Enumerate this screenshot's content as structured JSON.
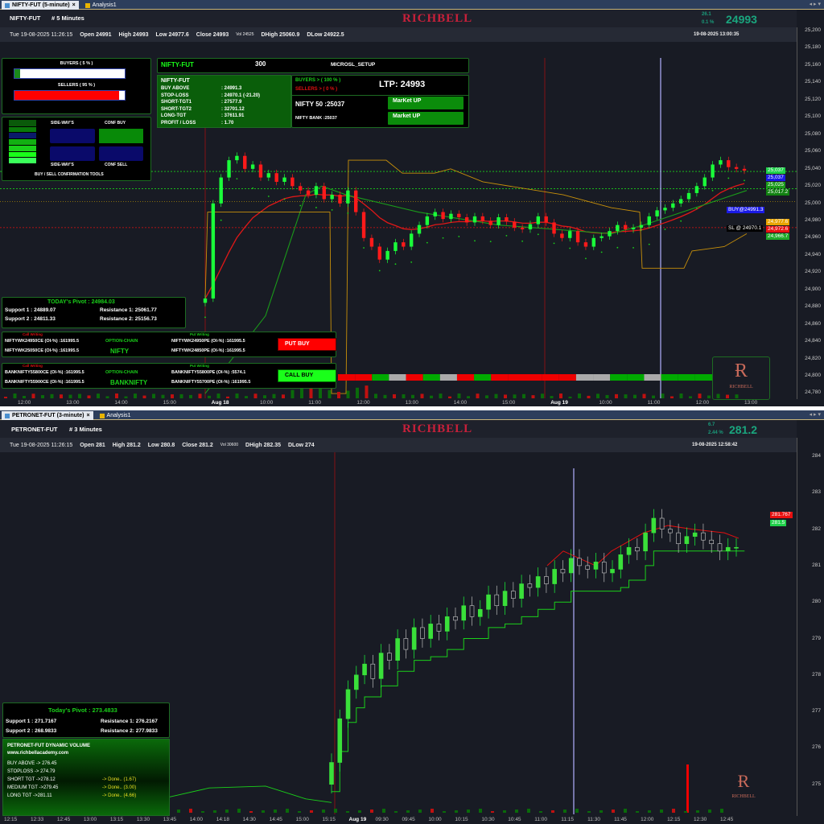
{
  "top": {
    "tabs": [
      {
        "label": "NIFTY-FUT (5-minute)"
      },
      {
        "label": "Analysis1"
      }
    ],
    "symbol": "NIFTY-FUT",
    "interval": "# 5  Minutes",
    "logo": "RICHBELL",
    "change": "26.1",
    "change_pct": "0.1 %",
    "ltp": "24993",
    "info": {
      "date": "Tue  19-08-2025 11:26:15",
      "open": "Open  24991",
      "high": "High  24993",
      "low": "Low  24977.6",
      "close": "Close  24993",
      "vol": "Vol 24525",
      "dhigh": "DHigh  25060.9",
      "dlow": "DLow  24922.5",
      "timestamp": "19-08-2025 13:00:35"
    },
    "buyers_label": "BUYERS ( 5 % )",
    "buyers_pct": 5,
    "sellers_label": "SELLERS ( 95 % )",
    "sellers_pct": 95,
    "confirm": {
      "sideways1": "SIDE-WAY'S",
      "conf_buy": "CONF BUY",
      "sideways2": "SIDE-WAY'S",
      "conf_sell": "CONF SELL",
      "title": "BUY / SELL CONFIRMATION TOOLS"
    },
    "setup": {
      "symbol": "NIFTY-FUT",
      "qty": "300",
      "name": "MICROSL_SETUP",
      "rows": [
        [
          "NIFTY-FUT",
          ""
        ],
        [
          "BUY ABOVE",
          ": 24991.3"
        ],
        [
          "STOP-LOSS",
          ": 24970.1 (-21.20)"
        ],
        [
          "SHORT-TGT1",
          ": 27577.9"
        ],
        [
          "SHORT-TGT2",
          ": 32701.12"
        ],
        [
          "LONG-TGT",
          ": 37611.91"
        ],
        [
          "PROFIT / LOSS",
          ": 1.70"
        ]
      ],
      "buyers": "BUYERS > ( 100 % )",
      "sellers": "SELLERS > ( 0 % )",
      "ltp": "LTP: 24993",
      "nifty50": "NIFTY 50 :25037",
      "niftybank": "NIFTY BANK :25037",
      "market1": "MarKet UP",
      "market2": "Market UP"
    },
    "pivot": {
      "title": "TODAY's Pivot :  24984.03",
      "s1": "Support 1 : 24889.07",
      "s2": "Support 2 : 24811.33",
      "r1": "Resistance 1: 25061.77",
      "r2": "Resistance 2: 25156.73"
    },
    "oc1": {
      "call": "Call Writing",
      "put": "Put Writing",
      "c1": "NIFTYWK24950CE (OI-%) :161995.5",
      "c2": "NIFTYWK25050CE (OI-%) :161995.5",
      "label": "OPTION-CHAIN",
      "name": "NIFTY",
      "p1": "NIFTYWK24950PE (OI-%) :161995.5",
      "p2": "NIFTYWK24850PE (OI-%) :161995.5",
      "btn": "PUT BUY"
    },
    "oc2": {
      "call": "Call Writing",
      "put": "Put Writing",
      "c1": "BANKNIFTY55800CE (OI-%) :161995.5",
      "c2": "BANKNIFTY55900CE (OI-%) :161995.5",
      "label": "OPTION-CHAIN",
      "name": "BANKNIFTY",
      "p1": "BANKNIFTY55800PE (OI-%) :5574.1",
      "p2": "BANKNIFTY55700PE (OI-%) :161995.5",
      "btn": "CALL BUY"
    },
    "yticks": [
      "25,200",
      "25,180",
      "25,160",
      "25,140",
      "25,120",
      "25,100",
      "25,080",
      "25,060",
      "25,040",
      "25,020",
      "25,000",
      "24,980",
      "24,960",
      "24,940",
      "24,920",
      "24,900",
      "24,880",
      "24,860",
      "24,840",
      "24,820",
      "24,800",
      "24,780"
    ],
    "xticks": [
      "12:00",
      "13:00",
      "14:00",
      "15:00",
      "Aug 18",
      "10:00",
      "11:00",
      "12:00",
      "13:00",
      "14:00",
      "15:00",
      "Aug 19",
      "10:00",
      "11:00",
      "12:00",
      "13:00"
    ],
    "tags": [
      {
        "text": "25,037",
        "color": "#1fd14a"
      },
      {
        "text": "25,037",
        "color": "#1a1ae6"
      },
      {
        "text": "25,025",
        "color": "#1a9a1a"
      },
      {
        "text": "25,017.2",
        "color": "#108010"
      },
      {
        "text": "24,977.6",
        "color": "#e8a400"
      },
      {
        "text": "24,972.6",
        "color": "#e81010"
      },
      {
        "text": "24,966.7",
        "color": "#1fa82a"
      }
    ],
    "buy_line": "BUY@24991.3",
    "sl_line": "SL @ 24970.1",
    "closes": [
      24890,
      25000,
      25030,
      25050,
      25055,
      25040,
      25045,
      25030,
      25035,
      25025,
      25030,
      25020,
      25015,
      25010,
      25020,
      25005,
      25010,
      25000,
      25015,
      24990,
      24960,
      24950,
      24935,
      24945,
      24955,
      24950,
      24965,
      24975,
      24985,
      24990,
      24982,
      24988,
      24984,
      24978,
      24985,
      24980,
      24975,
      24984,
      24979,
      24972,
      24970,
      24976,
      24985,
      24978,
      24965,
      24960,
      24968,
      24955,
      24950,
      24960,
      24962,
      24968,
      24975,
      24970,
      24972,
      24975,
      24985,
      24992,
      24995,
      25000,
      25005,
      25012,
      25020,
      25030,
      25045,
      25050,
      25042,
      25040,
      25038
    ]
  },
  "bottom": {
    "tabs": [
      {
        "label": "PETRONET-FUT (3-minute)"
      },
      {
        "label": "Analysis1"
      }
    ],
    "symbol": "PETRONET-FUT",
    "interval": "# 3  Minutes",
    "logo": "RICHBELL",
    "change": "6.7",
    "change_pct": "2.44 %",
    "ltp": "281.2",
    "info": {
      "date": "Tue  19-08-2025 11:26:15",
      "open": "Open  281",
      "high": "High  281.2",
      "low": "Low  280.8",
      "close": "Close  281.2",
      "vol": "Vol 30600",
      "dhigh": "DHigh  282.35",
      "dlow": "DLow  274",
      "timestamp": "19-08-2025 12:58:42"
    },
    "pivot": {
      "title": "Today's Pivot :  273.4833",
      "s1": "Support 1 : 271.7167",
      "s2": "Support 2 : 268.9833",
      "r1": "Resistance 1: 276.2167",
      "r2": "Resistance 2: 277.9833"
    },
    "dv": {
      "title": "PETRONET-FUT     DYNAMIC VOLUME",
      "site": "www.richbellacademy.com",
      "rows": [
        [
          "BUY ABOVE   ->  276.45",
          ""
        ],
        [
          "STOPLOSS -> 274.79",
          ""
        ],
        [
          "SHORT     TGT ->278.12",
          "-> Done.. (1.67)"
        ],
        [
          "MEDIUM  TGT ->279.45",
          "-> Done.. (3.00)"
        ],
        [
          "LONG      TGT ->281.11",
          "-> Done.. (4.66)"
        ]
      ]
    },
    "yticks": [
      "284",
      "283",
      "282",
      "281",
      "280",
      "279",
      "278",
      "277",
      "276",
      "275"
    ],
    "xticks": [
      "12:15",
      "12:33",
      "12:45",
      "13:00",
      "13:15",
      "13:30",
      "13:45",
      "14:00",
      "14:18",
      "14:30",
      "14:45",
      "15:00",
      "15:15",
      "Aug 19",
      "09:30",
      "09:45",
      "10:00",
      "10:15",
      "10:30",
      "10:45",
      "11:00",
      "11:15",
      "11:30",
      "11:45",
      "12:00",
      "12:15",
      "12:30",
      "12:45"
    ],
    "tags": [
      {
        "text": "281.767",
        "color": "#e81010"
      },
      {
        "text": "281.5",
        "color": "#1fd14a"
      }
    ],
    "closes": [
      275.6,
      276.8,
      277.6,
      278.0,
      278.3,
      277.9,
      278.6,
      278.4,
      279.0,
      278.7,
      279.3,
      279.0,
      279.4,
      279.2,
      279.6,
      279.5,
      279.9,
      279.6,
      279.8,
      280.2,
      279.9,
      280.3,
      280.1,
      280.5,
      280.4,
      280.7,
      280.5,
      280.9,
      280.8,
      281.2,
      281.0,
      280.9,
      281.1,
      280.8,
      280.9,
      281.3,
      281.5,
      281.4,
      281.9,
      282.3,
      282.0,
      281.9,
      281.6,
      281.8,
      281.9,
      281.7,
      281.6,
      281.4,
      281.5,
      281.5
    ]
  }
}
